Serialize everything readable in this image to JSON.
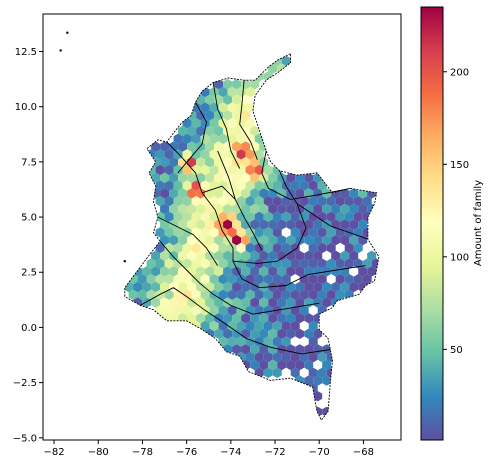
{
  "chart_data": {
    "type": "heatmap",
    "subtype": "hexbin map of Colombia with department boundaries",
    "title": "",
    "xlabel": "",
    "ylabel": "",
    "xlim": [
      -82.5,
      -66.3
    ],
    "ylim": [
      -5.1,
      14.2
    ],
    "x_ticks": [
      -82,
      -80,
      -78,
      -76,
      -74,
      -72,
      -70,
      -68
    ],
    "y_ticks": [
      -5.0,
      -2.5,
      0.0,
      2.5,
      5.0,
      7.5,
      10.0,
      12.5
    ],
    "x_tick_labels": [
      "−82",
      "−80",
      "−78",
      "−76",
      "−74",
      "−72",
      "−70",
      "−68"
    ],
    "y_tick_labels": [
      "−5.0",
      "−2.5",
      "0.0",
      "2.5",
      "5.0",
      "7.5",
      "10.0",
      "12.5"
    ],
    "grid": false,
    "colormap": "Spectral_r",
    "colorbar": {
      "label": "Amount of family",
      "min": 1,
      "max": 235,
      "ticks": [
        50,
        100,
        150,
        200
      ],
      "tick_labels": [
        "50",
        "100",
        "150",
        "200"
      ]
    },
    "hot_spots": [
      {
        "lon": -75.6,
        "lat": 6.2,
        "value": 220
      },
      {
        "lon": -74.1,
        "lat": 4.6,
        "value": 215
      },
      {
        "lon": -73.6,
        "lat": 4.0,
        "value": 200
      },
      {
        "lon": -72.9,
        "lat": 7.1,
        "value": 205
      },
      {
        "lon": -75.9,
        "lat": 7.4,
        "value": 180
      },
      {
        "lon": -73.4,
        "lat": 8.0,
        "value": 165
      }
    ],
    "islands": [
      {
        "lon": -81.7,
        "lat": 12.55
      },
      {
        "lon": -81.4,
        "lat": 13.35
      },
      {
        "lon": -78.8,
        "lat": 3.0
      }
    ],
    "colors": {
      "low": "#5e4fa2",
      "mid": "#ffffbf",
      "high": "#9e0142"
    }
  }
}
